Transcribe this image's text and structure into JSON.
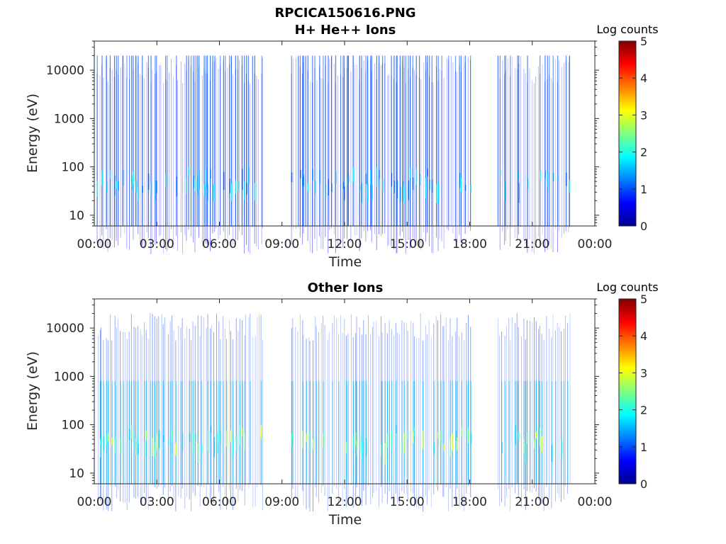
{
  "figure": {
    "title_line1": "RPCICA150616.PNG"
  },
  "chart_data": [
    {
      "type": "heatmap",
      "title": "H+ He++ Ions",
      "xlabel": "Time",
      "ylabel": "Energy (eV)",
      "x_ticks": [
        "00:00",
        "03:00",
        "06:00",
        "09:00",
        "12:00",
        "15:00",
        "18:00",
        "21:00",
        "00:00"
      ],
      "x_range_hours": [
        0,
        24
      ],
      "y_scale": "log",
      "y_ticks": [
        10,
        100,
        1000,
        10000
      ],
      "y_tick_labels": [
        "10",
        "100",
        "1000",
        "10000"
      ],
      "y_range_eV": [
        6,
        40000
      ],
      "colorbar": {
        "label": "Log counts",
        "ticks": [
          0,
          1,
          2,
          3,
          4,
          5
        ],
        "range": [
          0,
          5
        ],
        "colormap": "jet"
      },
      "data_intervals_hours": [
        [
          0.1,
          8.1
        ],
        [
          9.4,
          18.0
        ],
        [
          19.3,
          22.8
        ]
      ],
      "dominant_log_counts": 1.0,
      "peak_log_counts": 2.0,
      "peak_energy_eV": [
        20,
        100
      ]
    },
    {
      "type": "heatmap",
      "title": "Other Ions",
      "xlabel": "Time",
      "ylabel": "Energy (eV)",
      "x_ticks": [
        "00:00",
        "03:00",
        "06:00",
        "09:00",
        "12:00",
        "15:00",
        "18:00",
        "21:00",
        "00:00"
      ],
      "x_range_hours": [
        0,
        24
      ],
      "y_scale": "log",
      "y_ticks": [
        10,
        100,
        1000,
        10000
      ],
      "y_tick_labels": [
        "10",
        "100",
        "1000",
        "10000"
      ],
      "y_range_eV": [
        6,
        40000
      ],
      "colorbar": {
        "label": "Log counts",
        "ticks": [
          0,
          1,
          2,
          3,
          4,
          5
        ],
        "range": [
          0,
          5
        ],
        "colormap": "jet"
      },
      "data_intervals_hours": [
        [
          0.1,
          8.1
        ],
        [
          9.4,
          18.0
        ],
        [
          19.3,
          22.8
        ]
      ],
      "dominant_log_counts": 1.5,
      "peak_log_counts": 3.0,
      "peak_energy_eV": [
        20,
        100
      ]
    }
  ]
}
